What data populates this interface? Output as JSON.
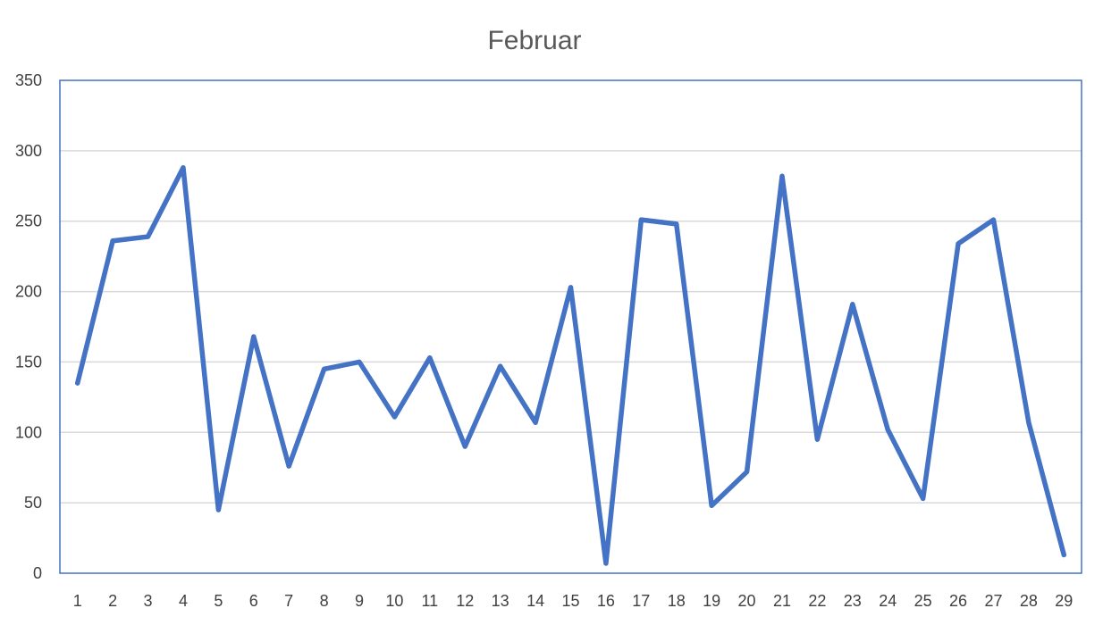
{
  "chart_data": {
    "type": "line",
    "title": "Februar",
    "xlabel": "",
    "ylabel": "",
    "categories": [
      "1",
      "2",
      "3",
      "4",
      "5",
      "6",
      "7",
      "8",
      "9",
      "10",
      "11",
      "12",
      "13",
      "14",
      "15",
      "16",
      "17",
      "18",
      "19",
      "20",
      "21",
      "22",
      "23",
      "24",
      "25",
      "26",
      "27",
      "28",
      "29"
    ],
    "series": [
      {
        "values": [
          135,
          236,
          239,
          288,
          45,
          168,
          76,
          145,
          150,
          111,
          153,
          90,
          147,
          107,
          203,
          7,
          251,
          248,
          48,
          72,
          282,
          95,
          191,
          102,
          53,
          234,
          251,
          107,
          13
        ],
        "color": "#4472C4"
      }
    ],
    "ylim": [
      0,
      350
    ],
    "yticks": [
      "0",
      "50",
      "100",
      "150",
      "200",
      "250",
      "300",
      "350"
    ],
    "grid": true,
    "legend": "none"
  }
}
